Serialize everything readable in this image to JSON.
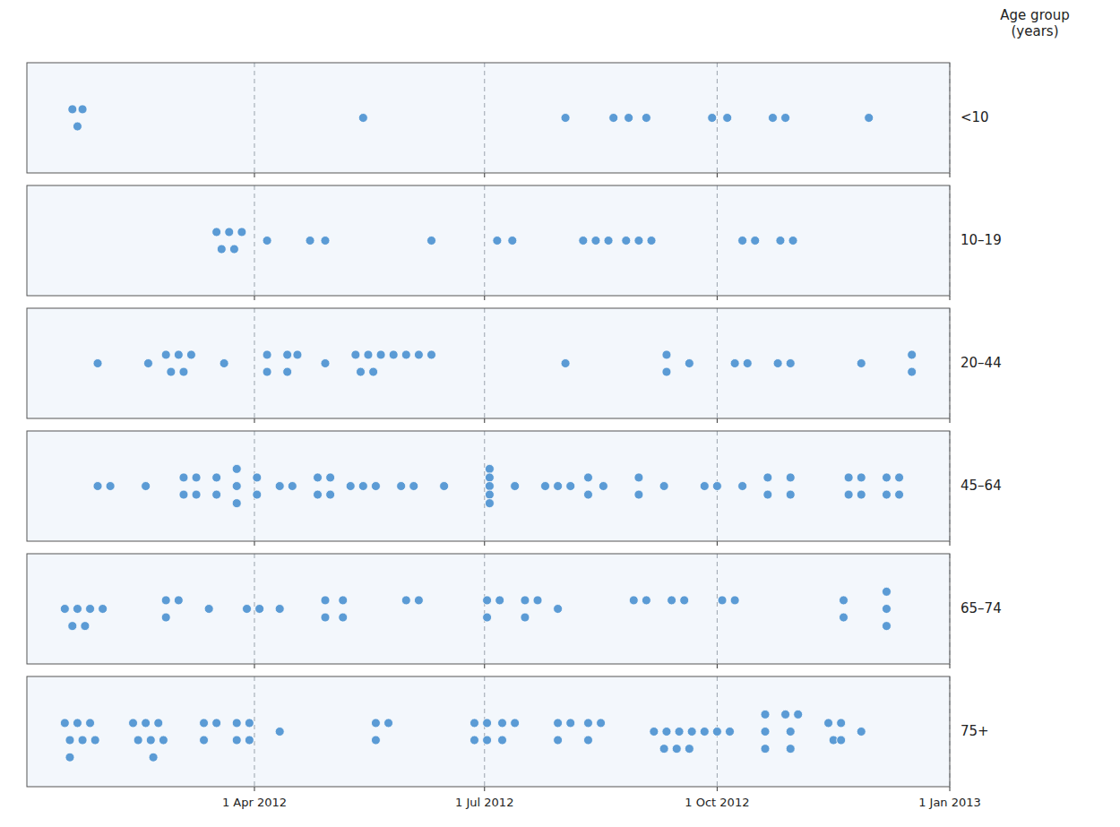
{
  "chart_data": [
    {
      "type": "scatter",
      "title": "<10",
      "x": [
        18,
        22,
        20,
        133,
        213,
        232,
        238,
        245,
        271,
        277,
        295,
        300,
        333
      ],
      "values": [
        0.07,
        0.07,
        -0.07,
        0,
        0,
        0,
        0,
        0,
        0,
        0,
        0,
        0,
        0
      ],
      "color": "#5b9bd5",
      "xlim": [
        0,
        365
      ],
      "ylim": [
        -0.45,
        0.45
      ],
      "xticks": [
        90,
        181,
        273,
        365
      ],
      "grid": true,
      "tick_labels": false,
      "annotations": [
        "Age group\n(years)"
      ]
    },
    {
      "type": "scatter",
      "title": "10–19",
      "x": [
        75,
        80,
        85,
        77,
        82,
        95,
        112,
        118,
        160,
        186,
        192,
        220,
        225,
        230,
        237,
        242,
        247,
        283,
        288,
        298,
        303
      ],
      "values": [
        0.07,
        0.07,
        0.07,
        -0.07,
        -0.07,
        0,
        0,
        0,
        0,
        0,
        0,
        0,
        0,
        0,
        0,
        0,
        0,
        0,
        0,
        0,
        0
      ],
      "color": "#5b9bd5",
      "xlim": [
        0,
        365
      ],
      "ylim": [
        -0.45,
        0.45
      ],
      "xticks": [
        90,
        181,
        273,
        365
      ],
      "grid": true,
      "tick_labels": false
    },
    {
      "type": "scatter",
      "title": "20–44",
      "x": [
        28,
        48,
        55,
        60,
        65,
        57,
        62,
        78,
        95,
        95,
        103,
        107,
        103,
        118,
        130,
        135,
        140,
        132,
        137,
        145,
        150,
        155,
        160,
        213,
        253,
        253,
        262,
        280,
        285,
        297,
        302,
        330,
        350,
        350
      ],
      "values": [
        0,
        0,
        0.07,
        0.07,
        0.07,
        -0.07,
        -0.07,
        0,
        0.07,
        -0.07,
        0.07,
        0.07,
        -0.07,
        0,
        0.07,
        0.07,
        0.07,
        -0.07,
        -0.07,
        0.07,
        0.07,
        0.07,
        0.07,
        0,
        0.07,
        -0.07,
        0,
        0,
        0,
        0,
        0,
        0,
        0.07,
        -0.07
      ],
      "color": "#5b9bd5",
      "xlim": [
        0,
        365
      ],
      "ylim": [
        -0.45,
        0.45
      ],
      "xticks": [
        90,
        181,
        273,
        365
      ],
      "grid": true,
      "tick_labels": false
    },
    {
      "type": "scatter",
      "title": "45–64",
      "x": [
        28,
        33,
        47,
        62,
        67,
        62,
        67,
        75,
        75,
        83,
        83,
        83,
        91,
        91,
        100,
        105,
        115,
        120,
        115,
        120,
        128,
        133,
        138,
        148,
        153,
        165,
        183,
        183,
        183,
        183,
        183,
        193,
        205,
        210,
        215,
        222,
        222,
        228,
        242,
        242,
        252,
        268,
        273,
        283,
        293,
        293,
        302,
        302,
        325,
        330,
        325,
        330,
        340,
        345,
        340,
        345
      ],
      "values": [
        0,
        0,
        0,
        0.07,
        0.07,
        -0.07,
        -0.07,
        0.07,
        -0.07,
        0.14,
        0,
        -0.14,
        0.07,
        -0.07,
        0,
        0,
        0.07,
        0.07,
        -0.07,
        -0.07,
        0,
        0,
        0,
        0,
        0,
        0,
        0.14,
        0.07,
        0,
        -0.07,
        -0.14,
        0,
        0,
        0,
        0,
        0.07,
        -0.07,
        0,
        0.07,
        -0.07,
        0,
        0,
        0,
        0,
        0.07,
        -0.07,
        0.07,
        -0.07,
        0.07,
        0.07,
        -0.07,
        -0.07,
        0.07,
        0.07,
        -0.07,
        -0.07
      ],
      "color": "#5b9bd5",
      "xlim": [
        0,
        365
      ],
      "ylim": [
        -0.45,
        0.45
      ],
      "xticks": [
        90,
        181,
        273,
        365
      ],
      "grid": true,
      "tick_labels": false
    },
    {
      "type": "scatter",
      "title": "65–74",
      "x": [
        15,
        20,
        25,
        30,
        18,
        23,
        55,
        60,
        55,
        72,
        87,
        92,
        100,
        118,
        118,
        125,
        125,
        150,
        155,
        182,
        187,
        182,
        197,
        202,
        197,
        210,
        240,
        245,
        255,
        260,
        275,
        280,
        323,
        323,
        340,
        340,
        340
      ],
      "values": [
        0,
        0,
        0,
        0,
        -0.14,
        -0.14,
        0.07,
        0.07,
        -0.07,
        0,
        0,
        0,
        0,
        0.07,
        -0.07,
        0.07,
        -0.07,
        0.07,
        0.07,
        0.07,
        0.07,
        -0.07,
        0.07,
        0.07,
        -0.07,
        0,
        0.07,
        0.07,
        0.07,
        0.07,
        0.07,
        0.07,
        0.07,
        -0.07,
        0.14,
        0,
        -0.14
      ],
      "color": "#5b9bd5",
      "xlim": [
        0,
        365
      ],
      "ylim": [
        -0.45,
        0.45
      ],
      "xticks": [
        90,
        181,
        273,
        365
      ],
      "grid": true,
      "tick_labels": false
    },
    {
      "type": "scatter",
      "title": "75+",
      "x": [
        15,
        20,
        25,
        17,
        22,
        27,
        17,
        42,
        47,
        52,
        44,
        49,
        54,
        50,
        70,
        75,
        70,
        83,
        83,
        88,
        88,
        100,
        138,
        143,
        138,
        177,
        182,
        177,
        182,
        188,
        193,
        188,
        210,
        215,
        210,
        222,
        227,
        222,
        248,
        253,
        258,
        263,
        268,
        273,
        278,
        252,
        257,
        262,
        292,
        292,
        292,
        300,
        305,
        302,
        302,
        317,
        322,
        319,
        322,
        330
      ],
      "values": [
        0.07,
        0.07,
        0.07,
        -0.07,
        -0.07,
        -0.07,
        -0.21,
        0.07,
        0.07,
        0.07,
        -0.07,
        -0.07,
        -0.07,
        -0.21,
        0.07,
        0.07,
        -0.07,
        0.07,
        -0.07,
        0.07,
        -0.07,
        0,
        0.07,
        0.07,
        -0.07,
        0.07,
        0.07,
        -0.07,
        -0.07,
        0.07,
        0.07,
        -0.07,
        0.07,
        0.07,
        -0.07,
        0.07,
        0.07,
        -0.07,
        0,
        0,
        0,
        0,
        0,
        0,
        0,
        -0.14,
        -0.14,
        -0.14,
        0.14,
        0,
        -0.14,
        0.14,
        0.14,
        0,
        -0.14,
        0.07,
        0.07,
        -0.07,
        -0.07,
        0
      ],
      "color": "#5b9bd5",
      "xlim": [
        0,
        365
      ],
      "ylim": [
        -0.45,
        0.45
      ],
      "xticks": [
        {
          "value": 90,
          "label": "1 Apr 2012"
        },
        {
          "value": 181,
          "label": "1 Jul 2012"
        },
        {
          "value": 273,
          "label": "1 Oct 2012"
        },
        {
          "value": 365,
          "label": "1 Jan 2013"
        }
      ],
      "grid": true,
      "tick_labels": "x"
    }
  ]
}
